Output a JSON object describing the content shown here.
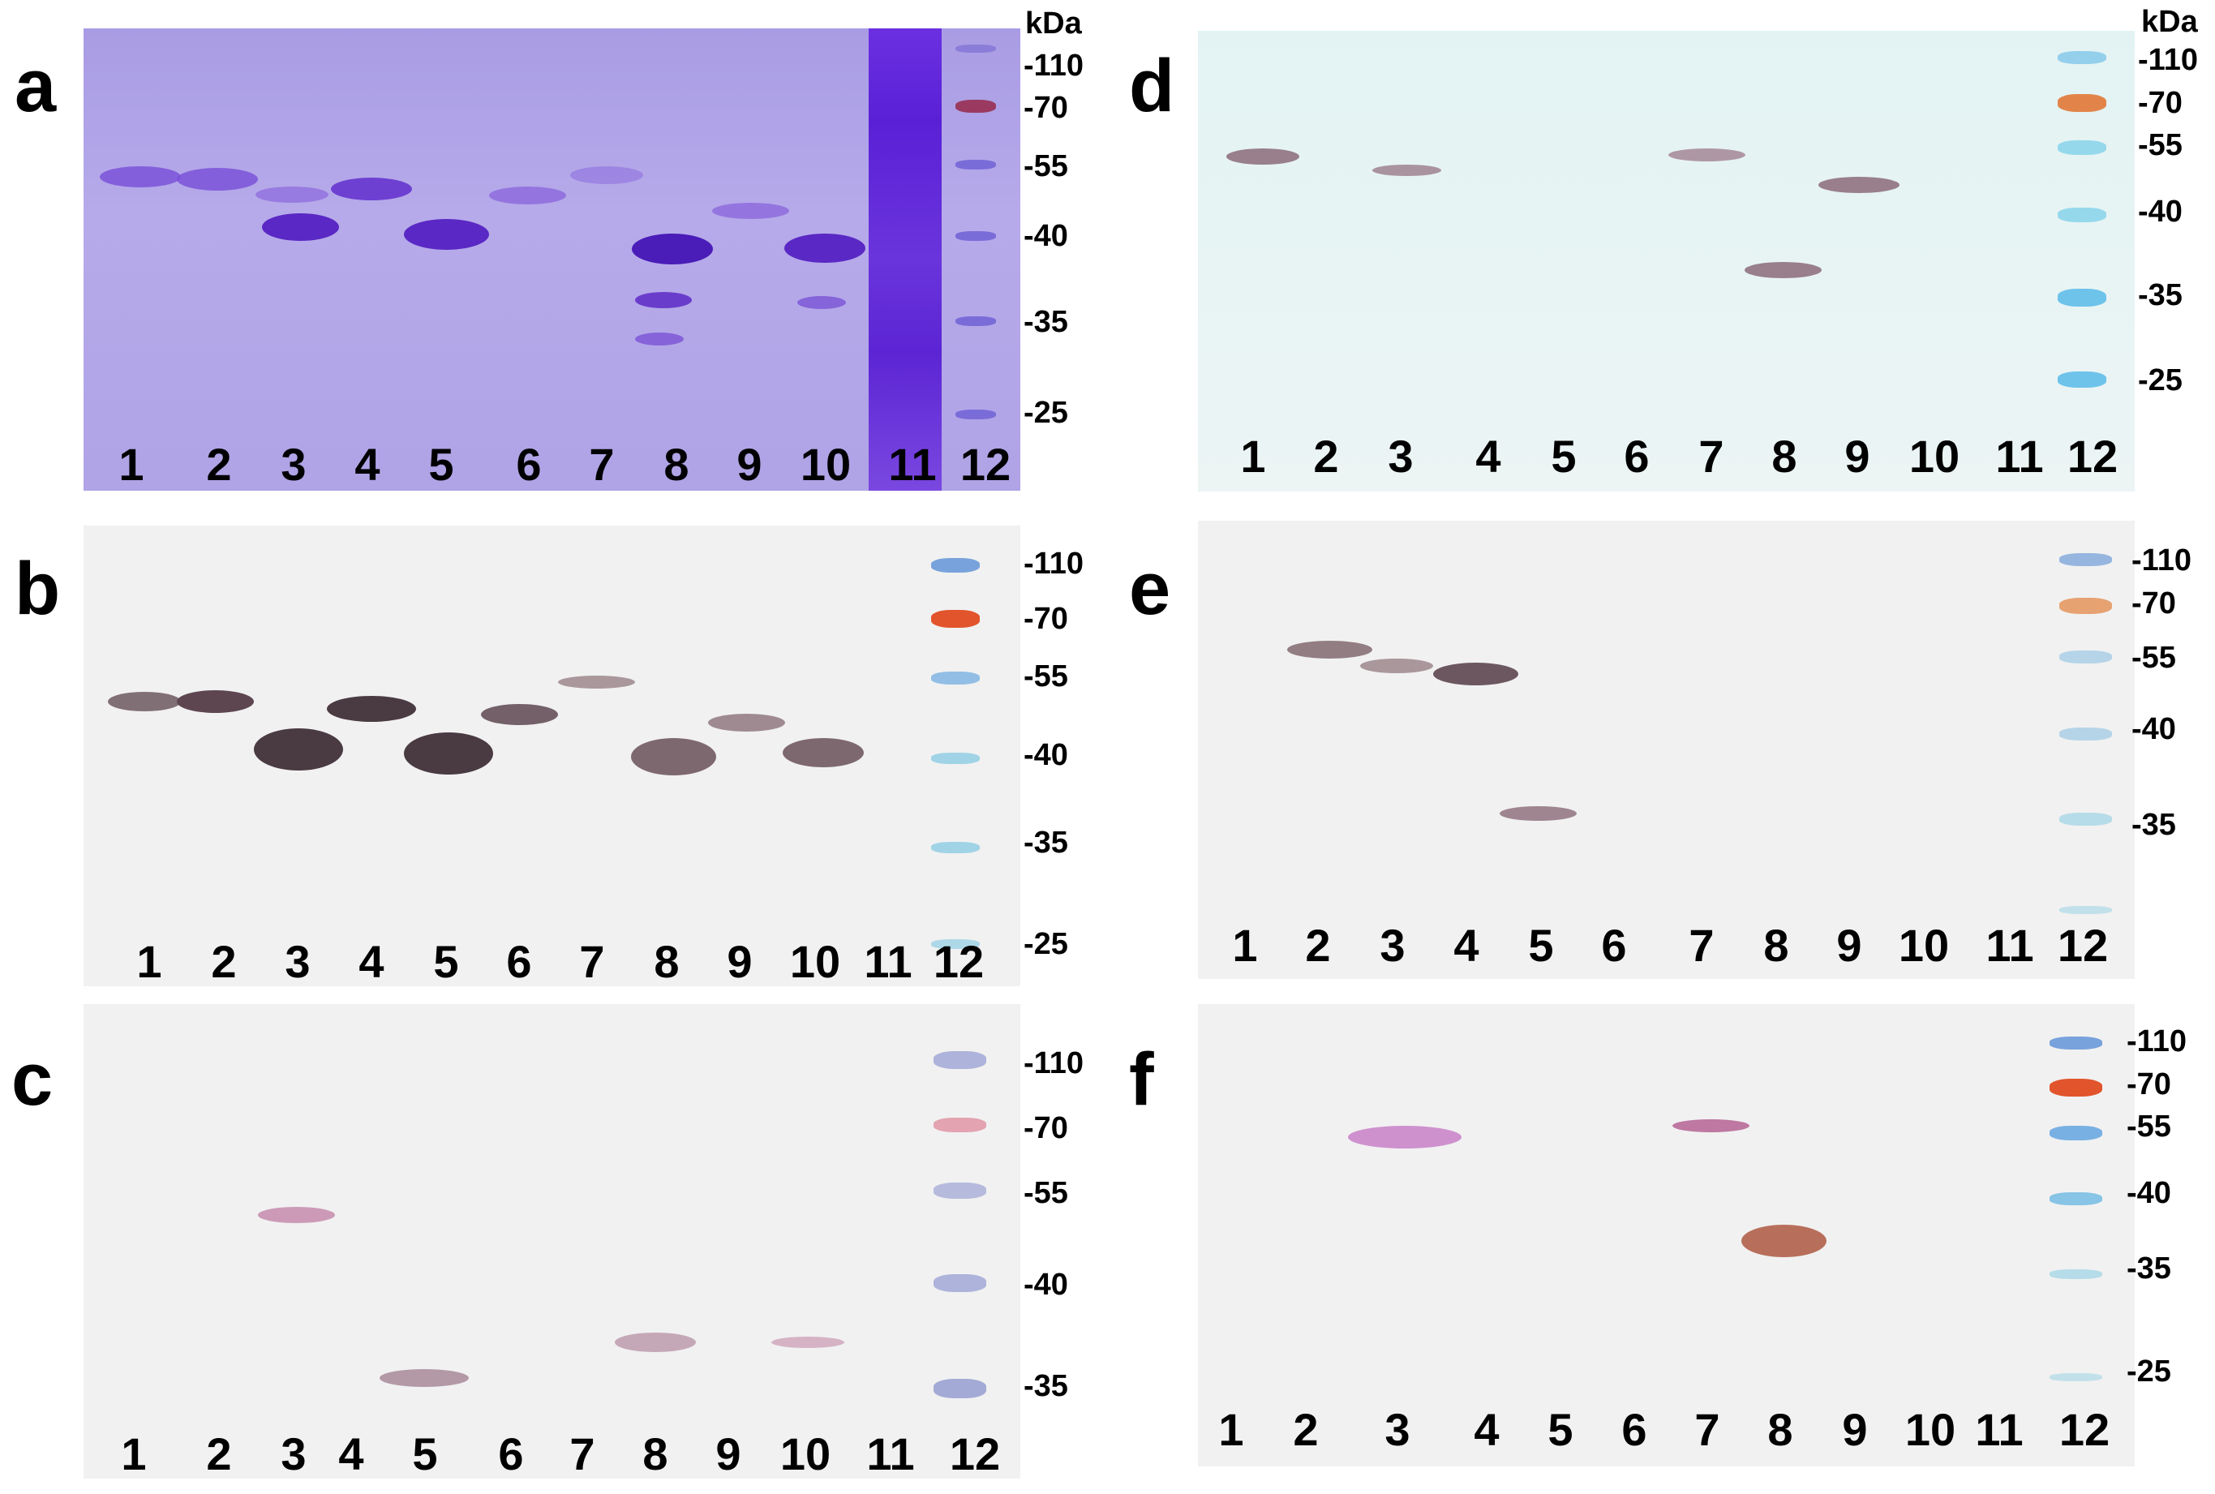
{
  "units_label": "kDa",
  "lane_labels": [
    "1",
    "2",
    "3",
    "4",
    "5",
    "6",
    "7",
    "8",
    "9",
    "10",
    "11",
    "12"
  ],
  "colors": {
    "coomassie": "#6a35d0",
    "blot_band": "#6d5860",
    "marker_blue": "#5a8fd6",
    "marker_red": "#e2542c",
    "marker_cyan": "#5fc7e8"
  },
  "panels": [
    {
      "letter": "a",
      "marker_labels": [
        "-110",
        "-70",
        "-55",
        "-40",
        "-35",
        "-25"
      ]
    },
    {
      "letter": "b",
      "marker_labels": [
        "-110",
        "-70",
        "-55",
        "-40",
        "-35",
        "-25"
      ]
    },
    {
      "letter": "c",
      "marker_labels": [
        "-110",
        "-70",
        "-55",
        "-40",
        "-35"
      ]
    },
    {
      "letter": "d",
      "marker_labels": [
        "-110",
        "-70",
        "-55",
        "-40",
        "-35",
        "-25"
      ]
    },
    {
      "letter": "e",
      "marker_labels": [
        "-110",
        "-70",
        "-55",
        "-40",
        "-35"
      ]
    },
    {
      "letter": "f",
      "marker_labels": [
        "-110",
        "-70",
        "-55",
        "-40",
        "-35",
        "-25"
      ]
    }
  ]
}
